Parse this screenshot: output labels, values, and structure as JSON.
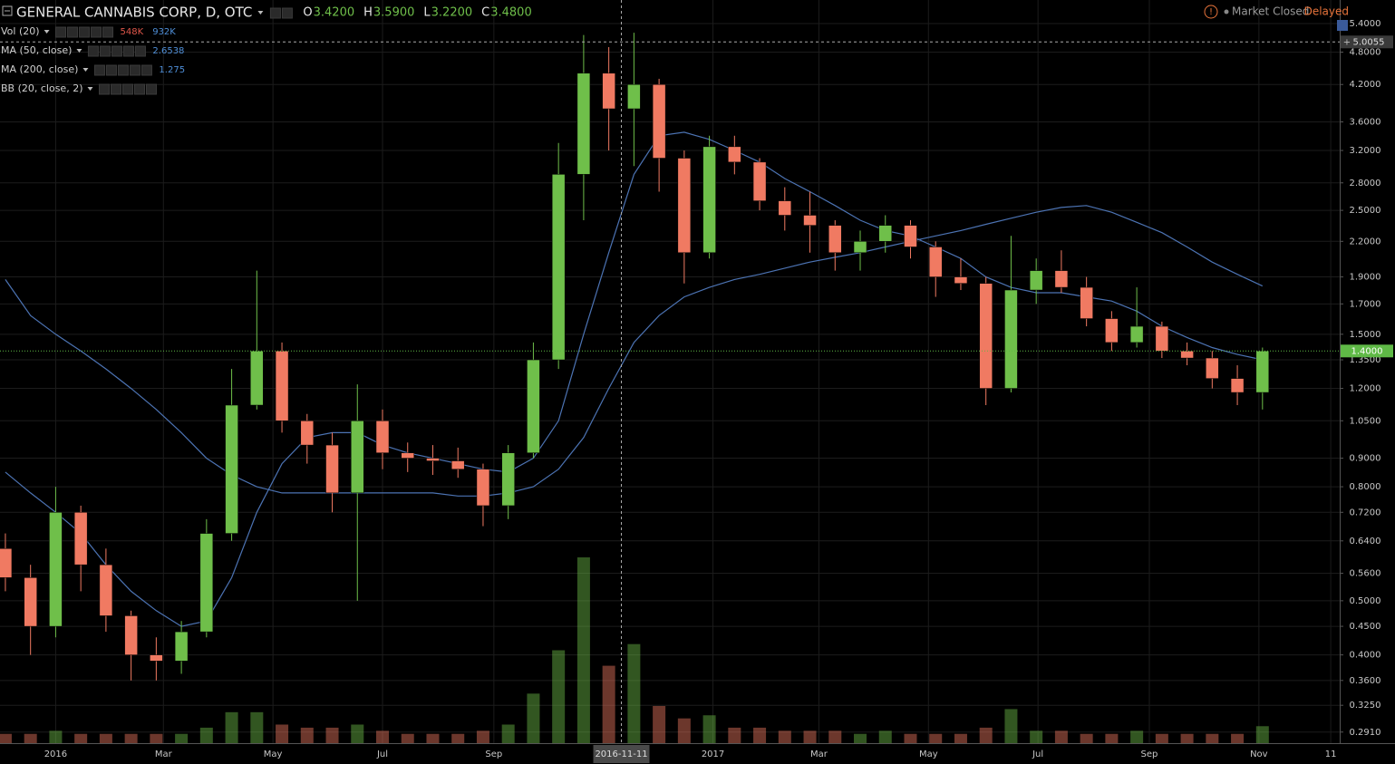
{
  "header": {
    "symbol": "GENERAL CANNABIS CORP, D, OTC",
    "ohlc": [
      {
        "name": "O",
        "value": 3.42,
        "label": "3.4200"
      },
      {
        "name": "H",
        "value": 3.59,
        "label": "3.5900"
      },
      {
        "name": "L",
        "value": 3.22,
        "label": "3.2200"
      },
      {
        "name": "C",
        "value": 3.48,
        "label": "3.4800"
      }
    ]
  },
  "status": {
    "market": "Market Closed",
    "feed": "Delayed"
  },
  "chart_data": {
    "type": "candlestick",
    "log_scale": true,
    "grid": true,
    "up_color": "#6fbf4a",
    "down_color": "#f07a62",
    "xlim": [
      "2015-12-01",
      "2017-12-16"
    ],
    "ylim": [
      0.278,
      5.95
    ],
    "xticks": [
      {
        "value": "2016-01-01",
        "label": "2016"
      },
      {
        "value": "2016-03-01",
        "label": "Mar"
      },
      {
        "value": "2016-05-01",
        "label": "May"
      },
      {
        "value": "2016-07-01",
        "label": "Jul"
      },
      {
        "value": "2016-09-01",
        "label": "Sep"
      },
      {
        "value": "2017-01-01",
        "label": "2017"
      },
      {
        "value": "2017-03-01",
        "label": "Mar"
      },
      {
        "value": "2017-05-01",
        "label": "May"
      },
      {
        "value": "2017-07-01",
        "label": "Jul"
      },
      {
        "value": "2017-09-01",
        "label": "Sep"
      },
      {
        "value": "2017-11-01",
        "label": "Nov"
      },
      {
        "value": "2017-12-11",
        "label": "11"
      }
    ],
    "yticks": [
      {
        "value": 5.4,
        "label": "5.4000"
      },
      {
        "value": 4.8,
        "label": "4.8000"
      },
      {
        "value": 4.2,
        "label": "4.2000"
      },
      {
        "value": 3.6,
        "label": "3.6000"
      },
      {
        "value": 3.2,
        "label": "3.2000"
      },
      {
        "value": 2.8,
        "label": "2.8000"
      },
      {
        "value": 2.5,
        "label": "2.5000"
      },
      {
        "value": 2.2,
        "label": "2.2000"
      },
      {
        "value": 1.9,
        "label": "1.9000"
      },
      {
        "value": 1.7,
        "label": "1.7000"
      },
      {
        "value": 1.5,
        "label": "1.5000"
      },
      {
        "value": 1.35,
        "label": "1.3500"
      },
      {
        "value": 1.2,
        "label": "1.2000"
      },
      {
        "value": 1.05,
        "label": "1.0500"
      },
      {
        "value": 0.9,
        "label": "0.9000"
      },
      {
        "value": 0.8,
        "label": "0.8000"
      },
      {
        "value": 0.72,
        "label": "0.7200"
      },
      {
        "value": 0.64,
        "label": "0.6400"
      },
      {
        "value": 0.56,
        "label": "0.5600"
      },
      {
        "value": 0.5,
        "label": "0.5000"
      },
      {
        "value": 0.45,
        "label": "0.4500"
      },
      {
        "value": 0.4,
        "label": "0.4000"
      },
      {
        "value": 0.36,
        "label": "0.3600"
      },
      {
        "value": 0.325,
        "label": "0.3250"
      },
      {
        "value": 0.291,
        "label": "0.2910"
      }
    ],
    "x": [
      "2015-12-04",
      "2015-12-18",
      "2016-01-01",
      "2016-01-15",
      "2016-01-29",
      "2016-02-12",
      "2016-02-26",
      "2016-03-11",
      "2016-03-25",
      "2016-04-08",
      "2016-04-22",
      "2016-05-06",
      "2016-05-20",
      "2016-06-03",
      "2016-06-17",
      "2016-07-01",
      "2016-07-15",
      "2016-07-29",
      "2016-08-12",
      "2016-08-26",
      "2016-09-09",
      "2016-09-23",
      "2016-10-07",
      "2016-10-21",
      "2016-11-04",
      "2016-11-18",
      "2016-12-02",
      "2016-12-16",
      "2016-12-30",
      "2017-01-13",
      "2017-01-27",
      "2017-02-10",
      "2017-02-24",
      "2017-03-10",
      "2017-03-24",
      "2017-04-07",
      "2017-04-21",
      "2017-05-05",
      "2017-05-19",
      "2017-06-02",
      "2017-06-16",
      "2017-06-30",
      "2017-07-14",
      "2017-07-28",
      "2017-08-11",
      "2017-08-25",
      "2017-09-08",
      "2017-09-22",
      "2017-10-06",
      "2017-10-20",
      "2017-11-03"
    ],
    "open": [
      0.62,
      0.55,
      0.45,
      0.72,
      0.58,
      0.47,
      0.4,
      0.39,
      0.44,
      0.66,
      1.12,
      1.4,
      1.05,
      0.95,
      0.78,
      1.05,
      0.92,
      0.9,
      0.89,
      0.86,
      0.74,
      0.92,
      1.35,
      2.9,
      4.4,
      3.8,
      4.2,
      3.1,
      2.1,
      3.25,
      3.05,
      2.6,
      2.45,
      2.35,
      2.1,
      2.2,
      2.35,
      2.15,
      1.9,
      1.85,
      1.2,
      1.8,
      1.95,
      1.82,
      1.6,
      1.45,
      1.55,
      1.4,
      1.36,
      1.25,
      1.18
    ],
    "high": [
      0.66,
      0.58,
      0.8,
      0.74,
      0.62,
      0.48,
      0.43,
      0.46,
      0.7,
      1.3,
      1.95,
      1.45,
      1.08,
      1.0,
      1.22,
      1.1,
      0.96,
      0.95,
      0.94,
      0.88,
      0.95,
      1.45,
      3.3,
      5.15,
      4.9,
      5.2,
      4.3,
      3.2,
      3.4,
      3.4,
      3.1,
      2.75,
      2.7,
      2.4,
      2.3,
      2.45,
      2.4,
      2.2,
      2.05,
      1.9,
      2.25,
      2.05,
      2.12,
      1.9,
      1.65,
      1.82,
      1.58,
      1.45,
      1.4,
      1.32,
      1.42
    ],
    "low": [
      0.52,
      0.4,
      0.43,
      0.52,
      0.44,
      0.36,
      0.36,
      0.37,
      0.43,
      0.64,
      1.1,
      1.0,
      0.88,
      0.72,
      0.5,
      0.86,
      0.85,
      0.84,
      0.83,
      0.68,
      0.7,
      0.9,
      1.3,
      2.4,
      3.2,
      3.0,
      2.7,
      1.85,
      2.05,
      2.9,
      2.5,
      2.3,
      2.1,
      1.95,
      1.95,
      2.1,
      2.05,
      1.75,
      1.8,
      1.12,
      1.18,
      1.7,
      1.78,
      1.55,
      1.4,
      1.42,
      1.36,
      1.32,
      1.2,
      1.12,
      1.1
    ],
    "close": [
      0.55,
      0.45,
      0.72,
      0.58,
      0.47,
      0.4,
      0.39,
      0.44,
      0.66,
      1.12,
      1.4,
      1.05,
      0.95,
      0.78,
      1.05,
      0.92,
      0.9,
      0.89,
      0.86,
      0.74,
      0.92,
      1.35,
      2.9,
      4.4,
      3.8,
      4.2,
      3.1,
      2.1,
      3.25,
      3.05,
      2.6,
      2.45,
      2.35,
      2.1,
      2.2,
      2.35,
      2.15,
      1.9,
      1.85,
      1.2,
      1.8,
      1.95,
      1.82,
      1.6,
      1.45,
      1.55,
      1.4,
      1.36,
      1.25,
      1.18,
      1.4
    ],
    "volume": {
      "name": "Vol (20)",
      "ylim": [
        0,
        24000000
      ],
      "readouts": [
        {
          "value": 548000,
          "label": "548K",
          "color": "#e0574a"
        },
        {
          "value": 932000,
          "label": "932K",
          "color": "#4f8fd8"
        }
      ],
      "values": [
        300000,
        300000,
        400000,
        300000,
        300000,
        300000,
        300000,
        300000,
        500000,
        1000000,
        1000000,
        600000,
        500000,
        500000,
        600000,
        400000,
        300000,
        300000,
        300000,
        400000,
        600000,
        1600000,
        3000000,
        6000000,
        2500000,
        3200000,
        1200000,
        800000,
        900000,
        500000,
        500000,
        400000,
        400000,
        400000,
        300000,
        400000,
        300000,
        300000,
        300000,
        500000,
        1100000,
        400000,
        400000,
        300000,
        300000,
        400000,
        300000,
        300000,
        300000,
        300000,
        548000
      ]
    },
    "series": [
      {
        "name": "MA (50, close)",
        "color": "#4c73b3",
        "readout": 2.6538,
        "values": [
          0.85,
          0.78,
          0.72,
          0.66,
          0.58,
          0.52,
          0.48,
          0.45,
          0.46,
          0.55,
          0.72,
          0.88,
          0.98,
          1.0,
          1.0,
          0.95,
          0.92,
          0.9,
          0.88,
          0.86,
          0.85,
          0.9,
          1.05,
          1.5,
          2.1,
          2.9,
          3.4,
          3.45,
          3.35,
          3.2,
          3.05,
          2.85,
          2.7,
          2.55,
          2.4,
          2.3,
          2.25,
          2.15,
          2.05,
          1.9,
          1.82,
          1.78,
          1.78,
          1.75,
          1.72,
          1.65,
          1.55,
          1.48,
          1.42,
          1.38,
          1.35
        ]
      },
      {
        "name": "MA (200, close)",
        "color": "#4c73b3",
        "readout": 1.275,
        "values": [
          1.88,
          1.62,
          1.5,
          1.4,
          1.3,
          1.2,
          1.1,
          1.0,
          0.9,
          0.84,
          0.8,
          0.78,
          0.78,
          0.78,
          0.78,
          0.78,
          0.78,
          0.78,
          0.77,
          0.77,
          0.78,
          0.8,
          0.86,
          0.98,
          1.2,
          1.45,
          1.62,
          1.75,
          1.82,
          1.88,
          1.92,
          1.97,
          2.02,
          2.06,
          2.1,
          2.15,
          2.2,
          2.25,
          2.3,
          2.36,
          2.42,
          2.48,
          2.53,
          2.55,
          2.48,
          2.38,
          2.28,
          2.15,
          2.02,
          1.92,
          1.83
        ]
      }
    ],
    "bands": [
      {
        "name": "BB (20, close, 2)"
      }
    ],
    "crosshair": {
      "x": "2016-11-11",
      "y": 5.0055
    },
    "last_price": {
      "value": 1.4,
      "label": "1.4000",
      "color": "#5fb946"
    }
  }
}
